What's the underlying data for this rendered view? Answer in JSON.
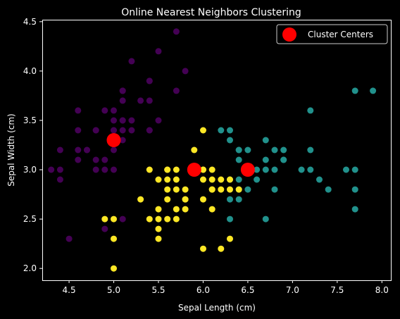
{
  "chart_data": {
    "type": "scatter",
    "title": "Online Nearest Neighbors Clustering",
    "xlabel": "Sepal Length (cm)",
    "ylabel": "Sepal Width (cm)",
    "xlim": [
      4.2,
      8.1
    ],
    "ylim": [
      1.88,
      4.52
    ],
    "xticks": [
      "4.5",
      "5.0",
      "5.5",
      "6.0",
      "6.5",
      "7.0",
      "7.5",
      "8.0"
    ],
    "yticks": [
      "2.0",
      "2.5",
      "3.0",
      "3.5",
      "4.0",
      "4.5"
    ],
    "grid": false,
    "legend": {
      "placement": "top-right",
      "entries": [
        "Cluster Centers"
      ]
    },
    "colors": {
      "cluster_0": "#440154",
      "cluster_1": "#21918c",
      "cluster_2": "#fde725",
      "center": "#ff0000",
      "background": "#000000",
      "foreground": "#ffffff"
    },
    "series": [
      {
        "cluster": 0,
        "points": [
          [
            5.7,
            4.4
          ],
          [
            5.5,
            4.2
          ],
          [
            5.2,
            4.1
          ],
          [
            5.8,
            4.0
          ],
          [
            5.4,
            3.9
          ],
          [
            5.1,
            3.8
          ],
          [
            5.7,
            3.8
          ],
          [
            5.1,
            3.7
          ],
          [
            5.3,
            3.7
          ],
          [
            5.4,
            3.7
          ],
          [
            4.6,
            3.6
          ],
          [
            4.9,
            3.6
          ],
          [
            5.0,
            3.6
          ],
          [
            5.1,
            3.5
          ],
          [
            5.0,
            3.5
          ],
          [
            5.2,
            3.5
          ],
          [
            5.5,
            3.5
          ],
          [
            4.8,
            3.4
          ],
          [
            4.6,
            3.4
          ],
          [
            5.0,
            3.4
          ],
          [
            5.1,
            3.4
          ],
          [
            5.2,
            3.4
          ],
          [
            5.4,
            3.4
          ],
          [
            4.9,
            3.1
          ],
          [
            5.0,
            3.2
          ],
          [
            5.1,
            3.3
          ],
          [
            4.7,
            3.2
          ],
          [
            4.4,
            3.2
          ],
          [
            4.6,
            3.2
          ],
          [
            4.4,
            3.0
          ],
          [
            4.3,
            3.0
          ],
          [
            4.8,
            3.0
          ],
          [
            4.9,
            3.0
          ],
          [
            5.0,
            3.0
          ],
          [
            4.4,
            2.9
          ],
          [
            4.6,
            3.1
          ],
          [
            4.8,
            3.1
          ],
          [
            5.0,
            3.4
          ],
          [
            5.4,
            3.4
          ],
          [
            5.4,
            3.9
          ],
          [
            5.1,
            3.5
          ],
          [
            5.1,
            2.5
          ],
          [
            4.5,
            2.3
          ],
          [
            4.9,
            2.4
          ],
          [
            5.0,
            3.3
          ],
          [
            4.8,
            3.4
          ],
          [
            5.0,
            3.3
          ],
          [
            4.7,
            3.2
          ],
          [
            5.4,
            3.0
          ],
          [
            5.1,
            3.8
          ]
        ]
      },
      {
        "cluster": 1,
        "points": [
          [
            7.7,
            3.8
          ],
          [
            7.9,
            3.8
          ],
          [
            7.2,
            3.6
          ],
          [
            6.2,
            3.4
          ],
          [
            6.3,
            3.4
          ],
          [
            6.3,
            3.3
          ],
          [
            6.4,
            3.2
          ],
          [
            6.5,
            3.2
          ],
          [
            6.7,
            3.3
          ],
          [
            6.9,
            3.2
          ],
          [
            7.2,
            3.2
          ],
          [
            6.8,
            3.2
          ],
          [
            6.4,
            3.1
          ],
          [
            6.7,
            3.1
          ],
          [
            6.9,
            3.1
          ],
          [
            6.5,
            3.0
          ],
          [
            6.6,
            3.0
          ],
          [
            6.7,
            3.0
          ],
          [
            6.8,
            3.0
          ],
          [
            7.1,
            3.0
          ],
          [
            7.2,
            3.0
          ],
          [
            7.6,
            3.0
          ],
          [
            7.7,
            3.0
          ],
          [
            6.4,
            2.9
          ],
          [
            6.6,
            2.9
          ],
          [
            7.3,
            2.9
          ],
          [
            6.4,
            2.8
          ],
          [
            6.5,
            2.8
          ],
          [
            6.8,
            2.8
          ],
          [
            7.4,
            2.8
          ],
          [
            7.7,
            2.8
          ],
          [
            6.3,
            2.7
          ],
          [
            6.4,
            2.7
          ],
          [
            7.7,
            2.6
          ],
          [
            6.3,
            2.5
          ],
          [
            6.7,
            2.5
          ],
          [
            6.3,
            2.9
          ],
          [
            6.9,
            3.1
          ],
          [
            6.4,
            3.2
          ]
        ]
      },
      {
        "cluster": 2,
        "points": [
          [
            6.0,
            3.4
          ],
          [
            5.9,
            3.2
          ],
          [
            5.6,
            3.0
          ],
          [
            5.7,
            3.0
          ],
          [
            5.4,
            3.0
          ],
          [
            5.5,
            2.9
          ],
          [
            5.6,
            2.9
          ],
          [
            5.7,
            2.9
          ],
          [
            6.0,
            2.9
          ],
          [
            6.1,
            2.9
          ],
          [
            6.2,
            2.9
          ],
          [
            6.3,
            2.9
          ],
          [
            6.1,
            2.8
          ],
          [
            6.2,
            2.8
          ],
          [
            6.3,
            2.8
          ],
          [
            6.4,
            2.8
          ],
          [
            5.6,
            2.8
          ],
          [
            5.7,
            2.8
          ],
          [
            5.8,
            2.8
          ],
          [
            5.5,
            2.6
          ],
          [
            5.8,
            2.7
          ],
          [
            5.6,
            2.7
          ],
          [
            6.0,
            2.7
          ],
          [
            5.3,
            2.7
          ],
          [
            5.5,
            2.5
          ],
          [
            5.6,
            2.5
          ],
          [
            5.7,
            2.6
          ],
          [
            5.8,
            2.6
          ],
          [
            6.1,
            2.6
          ],
          [
            5.4,
            2.5
          ],
          [
            5.5,
            2.4
          ],
          [
            5.0,
            2.5
          ],
          [
            4.9,
            2.5
          ],
          [
            5.5,
            2.3
          ],
          [
            6.3,
            2.3
          ],
          [
            5.0,
            2.3
          ],
          [
            6.0,
            2.2
          ],
          [
            6.2,
            2.2
          ],
          [
            5.0,
            2.0
          ],
          [
            5.6,
            3.0
          ],
          [
            5.9,
            3.0
          ],
          [
            6.0,
            3.0
          ],
          [
            6.1,
            3.0
          ],
          [
            6.0,
            3.0
          ],
          [
            5.7,
            2.5
          ],
          [
            5.8,
            2.7
          ],
          [
            6.1,
            2.8
          ]
        ]
      }
    ],
    "centers": [
      [
        5.0,
        3.3
      ],
      [
        5.9,
        3.0
      ],
      [
        6.5,
        3.0
      ]
    ]
  }
}
